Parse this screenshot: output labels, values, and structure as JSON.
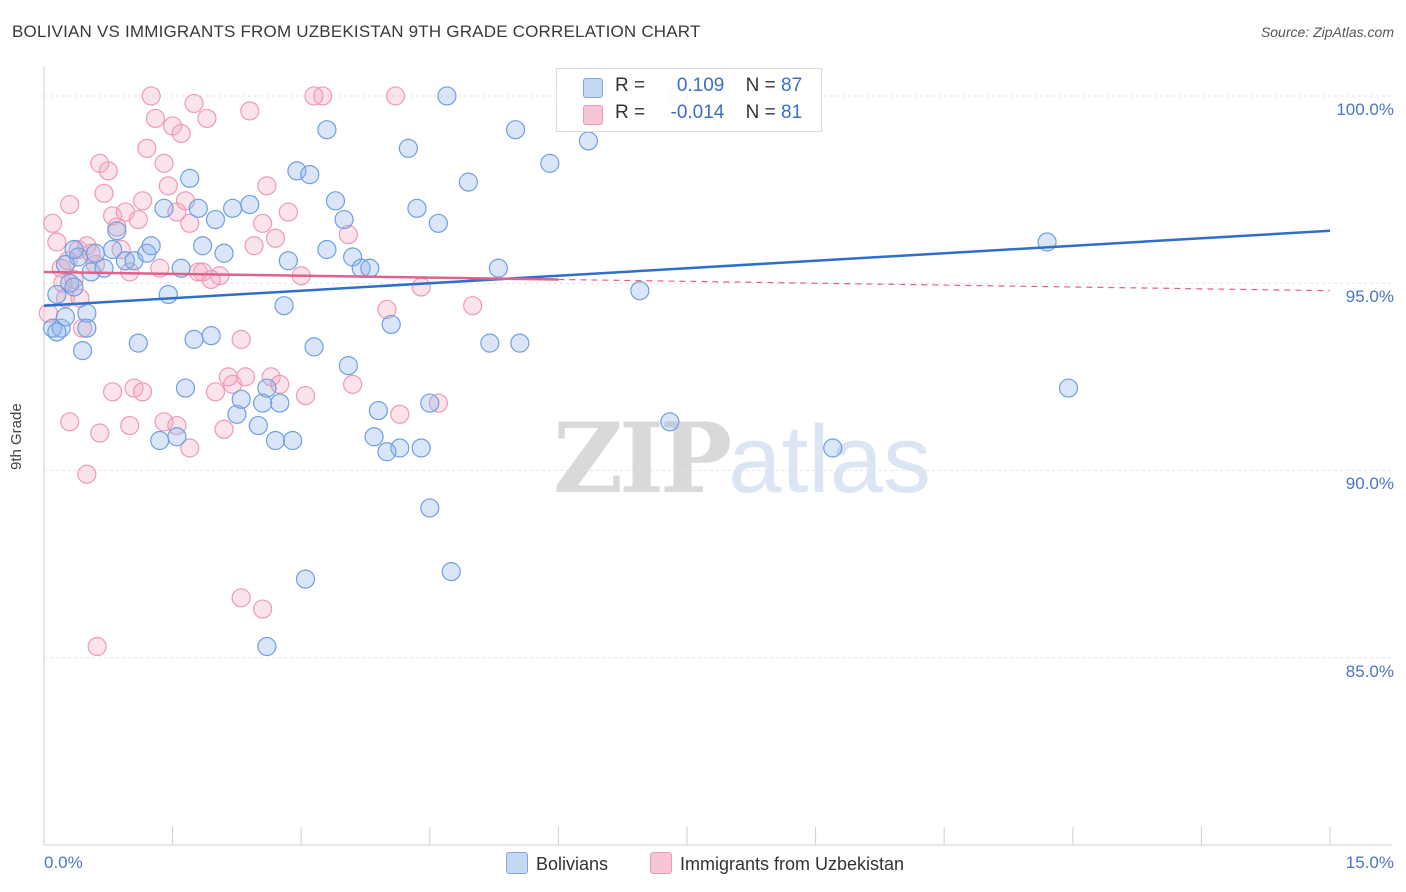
{
  "title": "BOLIVIAN VS IMMIGRANTS FROM UZBEKISTAN 9TH GRADE CORRELATION CHART",
  "source": "Source: ZipAtlas.com",
  "watermark": {
    "part1": "ZIP",
    "part2": "atlas"
  },
  "colors": {
    "blue": "#6f9fe0",
    "blue_line": "#2f6fca",
    "pink": "#ef93b1",
    "pink_line": "#e0628c",
    "axis_text": "#4a76c4"
  },
  "legend": {
    "blue": {
      "r_label": "R = ",
      "r_value": "0.109",
      "n_label": "N = ",
      "n_value": "87"
    },
    "pink": {
      "r_label": "R = ",
      "r_value": "-0.014",
      "n_label": "N = ",
      "n_value": "81"
    }
  },
  "bottom_legend": {
    "blue_label": "Bolivians",
    "pink_label": "Immigrants from Uzbekistan"
  },
  "chart_data": {
    "type": "scatter",
    "title": "BOLIVIAN VS IMMIGRANTS FROM UZBEKISTAN 9TH GRADE CORRELATION CHART",
    "xlabel": "",
    "ylabel": "9th Grade",
    "xlim": [
      0,
      15
    ],
    "ylim": [
      80.0,
      100.8
    ],
    "x_tick_labels": [
      "0.0%",
      "15.0%"
    ],
    "y_ticks": [
      100,
      95,
      90,
      85
    ],
    "y_tick_labels": [
      "100.0%",
      "95.0%",
      "90.0%",
      "85.0%"
    ],
    "grid": true,
    "series": [
      {
        "name": "Bolivians",
        "color": "#6f9fe0",
        "R": 0.109,
        "N": 87,
        "trend": {
          "x": [
            0,
            15
          ],
          "y": [
            94.4,
            96.4
          ],
          "style": "solid"
        },
        "points": [
          [
            0.1,
            93.8
          ],
          [
            0.15,
            94.7
          ],
          [
            0.2,
            93.8
          ],
          [
            0.25,
            94.1
          ],
          [
            0.3,
            95.0
          ],
          [
            0.35,
            94.9
          ],
          [
            0.4,
            95.7
          ],
          [
            0.45,
            93.2
          ],
          [
            0.5,
            94.2
          ],
          [
            0.55,
            95.3
          ],
          [
            0.6,
            95.8
          ],
          [
            0.7,
            95.4
          ],
          [
            0.8,
            95.9
          ],
          [
            0.85,
            96.4
          ],
          [
            0.95,
            95.6
          ],
          [
            1.05,
            95.6
          ],
          [
            1.1,
            93.4
          ],
          [
            1.2,
            95.8
          ],
          [
            1.25,
            96.0
          ],
          [
            1.4,
            97.0
          ],
          [
            1.45,
            94.7
          ],
          [
            1.6,
            95.4
          ],
          [
            1.65,
            92.2
          ],
          [
            1.7,
            97.8
          ],
          [
            1.75,
            93.5
          ],
          [
            1.8,
            97.0
          ],
          [
            1.85,
            96.0
          ],
          [
            1.95,
            93.6
          ],
          [
            2.0,
            96.7
          ],
          [
            2.1,
            95.8
          ],
          [
            2.2,
            97.0
          ],
          [
            2.25,
            91.5
          ],
          [
            2.3,
            91.9
          ],
          [
            2.4,
            97.1
          ],
          [
            2.5,
            91.2
          ],
          [
            2.55,
            91.8
          ],
          [
            2.6,
            92.2
          ],
          [
            2.7,
            90.8
          ],
          [
            2.75,
            91.8
          ],
          [
            2.8,
            94.4
          ],
          [
            2.85,
            95.6
          ],
          [
            2.95,
            98.0
          ],
          [
            3.1,
            97.9
          ],
          [
            3.15,
            93.3
          ],
          [
            3.3,
            99.1
          ],
          [
            3.3,
            95.9
          ],
          [
            3.4,
            97.2
          ],
          [
            3.5,
            96.7
          ],
          [
            3.55,
            92.8
          ],
          [
            3.6,
            95.7
          ],
          [
            3.7,
            95.4
          ],
          [
            3.8,
            95.4
          ],
          [
            3.85,
            90.9
          ],
          [
            4.05,
            93.9
          ],
          [
            4.15,
            90.6
          ],
          [
            4.25,
            98.6
          ],
          [
            4.35,
            97.0
          ],
          [
            4.4,
            90.6
          ],
          [
            4.5,
            91.8
          ],
          [
            4.6,
            96.6
          ],
          [
            4.7,
            100.0
          ],
          [
            4.95,
            97.7
          ],
          [
            5.2,
            93.4
          ],
          [
            5.3,
            95.4
          ],
          [
            5.5,
            99.1
          ],
          [
            5.55,
            93.4
          ],
          [
            5.9,
            98.2
          ],
          [
            6.35,
            98.8
          ],
          [
            6.95,
            94.8
          ],
          [
            3.05,
            87.1
          ],
          [
            2.6,
            85.3
          ],
          [
            4.5,
            89.0
          ],
          [
            4.75,
            87.3
          ],
          [
            7.4,
            100.0
          ],
          [
            7.3,
            91.3
          ],
          [
            9.2,
            90.6
          ],
          [
            11.7,
            96.1
          ],
          [
            11.95,
            92.2
          ],
          [
            0.5,
            93.8
          ],
          [
            1.35,
            90.8
          ],
          [
            1.55,
            90.9
          ],
          [
            2.9,
            90.8
          ],
          [
            3.9,
            91.6
          ],
          [
            4.0,
            90.5
          ],
          [
            0.15,
            93.7
          ],
          [
            0.25,
            95.5
          ],
          [
            0.35,
            95.9
          ]
        ]
      },
      {
        "name": "Immigrants from Uzbekistan",
        "color": "#ef93b1",
        "R": -0.014,
        "N": 81,
        "trend": {
          "x": [
            0,
            6.0,
            15
          ],
          "y": [
            95.3,
            95.1,
            94.8
          ],
          "style": "solid-then-dashed"
        },
        "points": [
          [
            0.05,
            94.2
          ],
          [
            0.1,
            96.6
          ],
          [
            0.15,
            96.1
          ],
          [
            0.2,
            95.4
          ],
          [
            0.25,
            94.6
          ],
          [
            0.3,
            97.1
          ],
          [
            0.35,
            95.1
          ],
          [
            0.4,
            95.9
          ],
          [
            0.45,
            93.8
          ],
          [
            0.5,
            96.0
          ],
          [
            0.55,
            95.8
          ],
          [
            0.6,
            95.5
          ],
          [
            0.65,
            98.2
          ],
          [
            0.7,
            97.4
          ],
          [
            0.75,
            98.0
          ],
          [
            0.8,
            96.8
          ],
          [
            0.85,
            96.5
          ],
          [
            0.9,
            95.9
          ],
          [
            0.95,
            96.9
          ],
          [
            1.0,
            95.3
          ],
          [
            1.05,
            92.2
          ],
          [
            1.1,
            96.7
          ],
          [
            1.15,
            97.2
          ],
          [
            1.2,
            98.6
          ],
          [
            1.25,
            100.0
          ],
          [
            1.3,
            99.4
          ],
          [
            1.35,
            95.4
          ],
          [
            1.4,
            98.2
          ],
          [
            1.45,
            97.6
          ],
          [
            1.5,
            99.2
          ],
          [
            1.55,
            96.9
          ],
          [
            1.6,
            99.0
          ],
          [
            1.65,
            97.2
          ],
          [
            1.7,
            96.6
          ],
          [
            1.75,
            99.8
          ],
          [
            1.8,
            95.3
          ],
          [
            1.85,
            95.3
          ],
          [
            1.9,
            99.4
          ],
          [
            2.0,
            92.1
          ],
          [
            2.05,
            95.2
          ],
          [
            2.1,
            91.1
          ],
          [
            2.2,
            92.3
          ],
          [
            2.3,
            93.5
          ],
          [
            2.35,
            92.5
          ],
          [
            2.4,
            99.6
          ],
          [
            2.45,
            96.0
          ],
          [
            2.55,
            96.6
          ],
          [
            2.6,
            97.6
          ],
          [
            2.65,
            92.5
          ],
          [
            2.7,
            96.2
          ],
          [
            2.75,
            92.3
          ],
          [
            2.85,
            96.9
          ],
          [
            3.0,
            95.2
          ],
          [
            3.05,
            92.0
          ],
          [
            3.15,
            100.0
          ],
          [
            3.25,
            100.0
          ],
          [
            3.55,
            96.3
          ],
          [
            3.6,
            92.3
          ],
          [
            4.0,
            94.3
          ],
          [
            4.1,
            100.0
          ],
          [
            4.15,
            91.5
          ],
          [
            4.4,
            94.9
          ],
          [
            4.6,
            91.8
          ],
          [
            5.0,
            94.4
          ],
          [
            1.4,
            91.3
          ],
          [
            0.3,
            91.3
          ],
          [
            0.5,
            89.9
          ],
          [
            0.65,
            91.0
          ],
          [
            1.0,
            91.2
          ],
          [
            1.55,
            91.2
          ],
          [
            2.3,
            86.6
          ],
          [
            2.55,
            86.3
          ],
          [
            0.62,
            85.3
          ],
          [
            0.8,
            92.1
          ],
          [
            1.15,
            92.1
          ],
          [
            1.7,
            90.6
          ],
          [
            1.95,
            95.1
          ],
          [
            2.15,
            92.5
          ],
          [
            0.42,
            94.6
          ],
          [
            0.22,
            95.0
          ],
          [
            0.28,
            95.6
          ]
        ]
      }
    ]
  }
}
